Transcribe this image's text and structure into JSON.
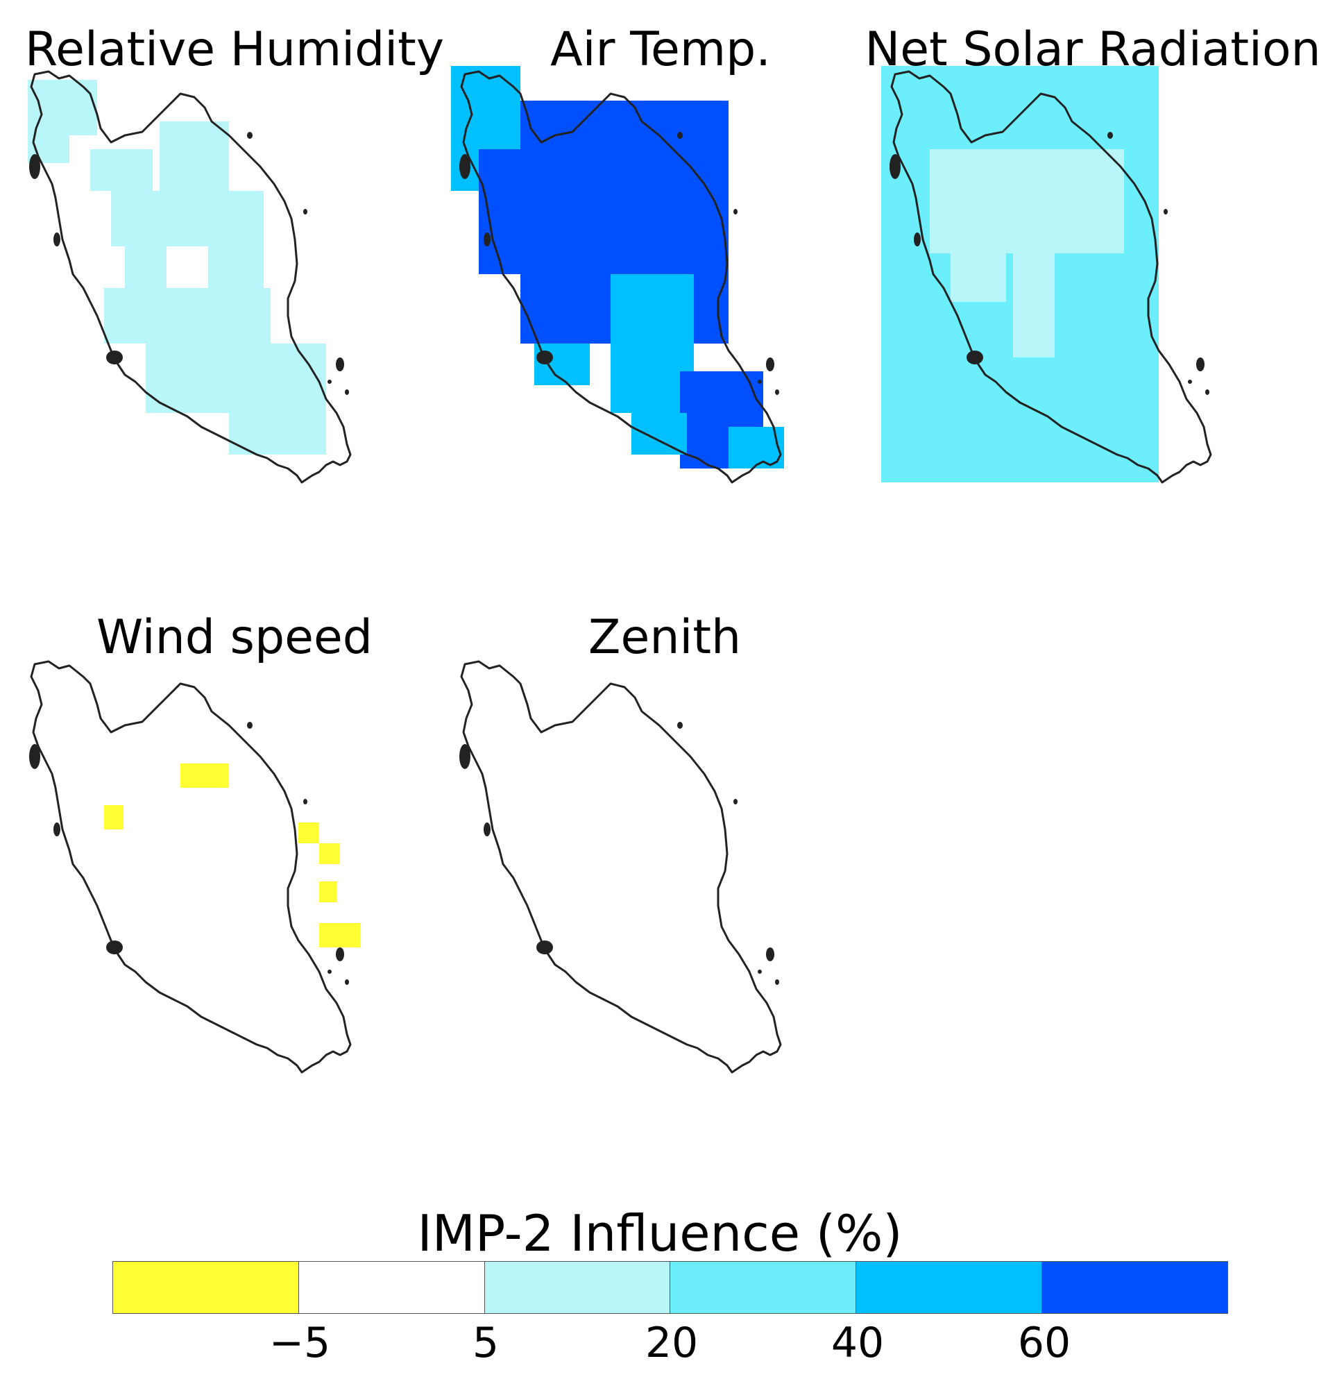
{
  "panels": [
    {
      "title": "Relative Humidity",
      "fill_class": "light-cyan",
      "fill_color": "#b9f6fa",
      "coverage": "most of peninsula, with gaps in north-west and center"
    },
    {
      "title": "Air Temp.",
      "fill_class": "blue-dominant",
      "fill_color": "#0050ff",
      "secondary_color": "#00c0ff",
      "coverage": "mostly 60+ with 40–60 band in south-center"
    },
    {
      "title": "Net Solar Radiation",
      "fill_class": "mid-cyan",
      "fill_color": "#6ceefc",
      "secondary_color": "#b9f6fa",
      "coverage": "20–40 over south, 5–20 over north-center"
    },
    {
      "title": "Wind speed",
      "fill_class": "mostly-white",
      "fill_color": "#ffff33",
      "coverage": "white with few yellow cells"
    },
    {
      "title": "Zenith",
      "fill_class": "white",
      "fill_color": "#ffffff",
      "coverage": "white"
    }
  ],
  "colorbar": {
    "title": "IMP-2 Influence (%)",
    "tick_labels": [
      "−5",
      "5",
      "20",
      "40",
      "60"
    ],
    "segments": [
      {
        "color": "#ffff33"
      },
      {
        "color": "#ffffff"
      },
      {
        "color": "#b9f6fa"
      },
      {
        "color": "#6ceefc"
      },
      {
        "color": "#00c0ff"
      },
      {
        "color": "#0050ff"
      }
    ]
  }
}
